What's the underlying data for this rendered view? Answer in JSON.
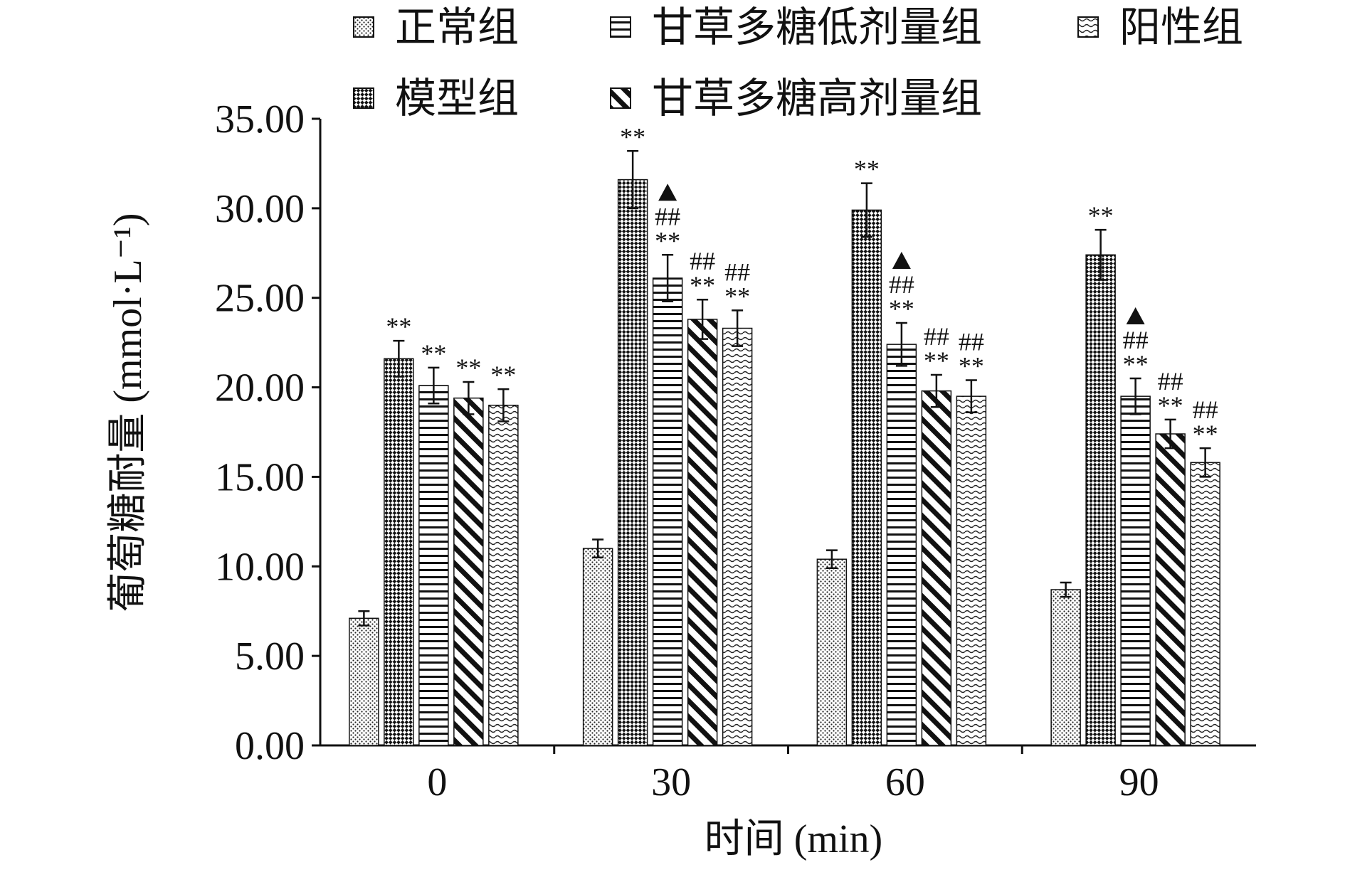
{
  "chart_data": {
    "type": "bar",
    "xlabel": "时间 (min)",
    "ylabel": "葡萄糖耐量 (mmol·L⁻¹)",
    "ylim": [
      0,
      35
    ],
    "yticks": [
      "0.00",
      "5.00",
      "10.00",
      "15.00",
      "20.00",
      "25.00",
      "30.00",
      "35.00"
    ],
    "categories": [
      "0",
      "30",
      "60",
      "90"
    ],
    "legend_position": "top",
    "series": [
      {
        "name": "正常组",
        "values": [
          7.1,
          11.0,
          10.4,
          8.7
        ],
        "errors": [
          0.4,
          0.5,
          0.5,
          0.4
        ],
        "pattern": "dots",
        "annotations": [
          "",
          "",
          "",
          ""
        ]
      },
      {
        "name": "模型组",
        "values": [
          21.6,
          31.6,
          29.9,
          27.4
        ],
        "errors": [
          1.0,
          1.6,
          1.5,
          1.4
        ],
        "pattern": "checker",
        "annotations": [
          "**",
          "**",
          "**",
          "**"
        ]
      },
      {
        "name": "甘草多糖低剂量组",
        "values": [
          20.1,
          26.1,
          22.4,
          19.5
        ],
        "errors": [
          1.0,
          1.3,
          1.2,
          1.0
        ],
        "pattern": "hlines",
        "annotations": [
          "**",
          "▲\n##\n**",
          "▲\n##\n**",
          "▲\n##\n**"
        ]
      },
      {
        "name": "甘草多糖高剂量组",
        "values": [
          19.4,
          23.8,
          19.8,
          17.4
        ],
        "errors": [
          0.9,
          1.1,
          0.9,
          0.8
        ],
        "pattern": "diag",
        "annotations": [
          "**",
          "##\n**",
          "##\n**",
          "##\n**"
        ]
      },
      {
        "name": "阳性组",
        "values": [
          19.0,
          23.3,
          19.5,
          15.8
        ],
        "errors": [
          0.9,
          1.0,
          0.9,
          0.8
        ],
        "pattern": "wave",
        "annotations": [
          "**",
          "##\n**",
          "##\n**",
          "##\n**"
        ]
      }
    ],
    "colors": {
      "ink": "#111111",
      "background": "#ffffff"
    }
  }
}
